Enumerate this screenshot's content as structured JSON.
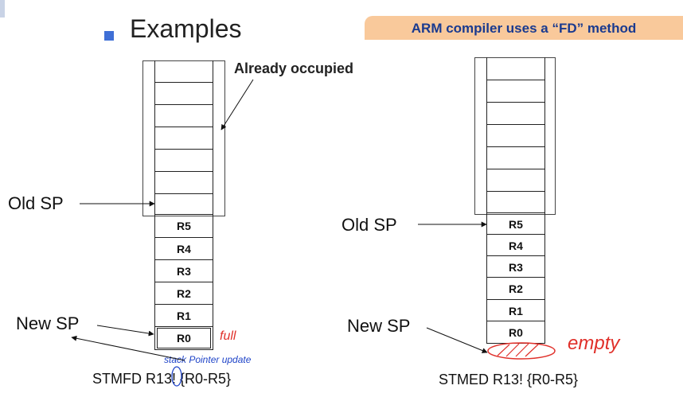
{
  "heading": "Examples",
  "callout": "ARM compiler uses a “FD” method",
  "occupied_label": "Already occupied",
  "left": {
    "old_sp": "Old SP",
    "new_sp": "New SP",
    "registers": [
      "R5",
      "R4",
      "R3",
      "R2",
      "R1",
      "R0"
    ],
    "instruction": "STMFD R13! {R0-R5}",
    "note_full": "full",
    "note_update": "stack Pointer update"
  },
  "right": {
    "old_sp": "Old SP",
    "new_sp": "New SP",
    "registers": [
      "R5",
      "R4",
      "R3",
      "R2",
      "R1",
      "R0"
    ],
    "instruction": "STMED R13! {R0-R5}",
    "note_empty": "empty"
  },
  "colors": {
    "bullet": "#3f6fd6",
    "callout_bg": "#f9c99b",
    "callout_text": "#1a3a8f",
    "handwriting_red": "#e0302a",
    "handwriting_blue": "#1f44c8"
  }
}
